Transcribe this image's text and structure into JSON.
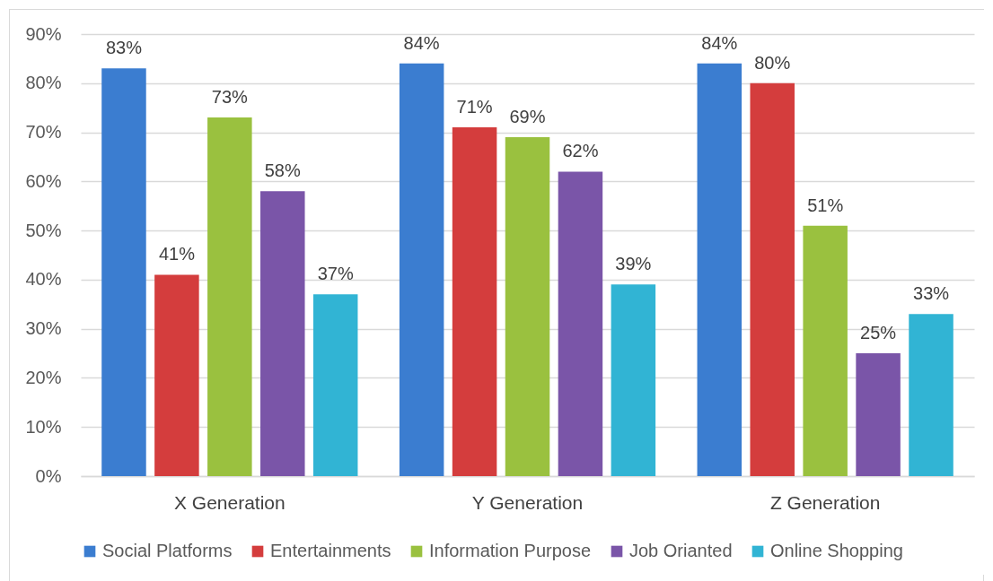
{
  "chart_data": {
    "type": "bar",
    "categories": [
      "X Generation",
      "Y Generation",
      "Z Generation"
    ],
    "series": [
      {
        "name": "Social Platforms",
        "color": "#3b7dd0",
        "values": [
          83,
          84,
          84
        ],
        "value_labels": [
          "83%",
          "84%",
          "84%"
        ]
      },
      {
        "name": "Entertainments",
        "color": "#d43d3d",
        "values": [
          41,
          71,
          80
        ],
        "value_labels": [
          "41%",
          "71%",
          "80%"
        ]
      },
      {
        "name": "Information Purpose",
        "color": "#9ac13f",
        "values": [
          73,
          69,
          51
        ],
        "value_labels": [
          "73%",
          "69%",
          "51%"
        ]
      },
      {
        "name": "Job Orianted",
        "color": "#7a55a8",
        "values": [
          58,
          62,
          25
        ],
        "value_labels": [
          "58%",
          "62%",
          "25%"
        ]
      },
      {
        "name": "Online Shopping",
        "color": "#31b4d4",
        "values": [
          37,
          39,
          33
        ],
        "value_labels": [
          "37%",
          "39%",
          "33%"
        ]
      }
    ],
    "ylim": [
      0,
      90
    ],
    "yticks": [
      {
        "value": 0,
        "label": "0%"
      },
      {
        "value": 10,
        "label": "10%"
      },
      {
        "value": 20,
        "label": "20%"
      },
      {
        "value": 30,
        "label": "30%"
      },
      {
        "value": 40,
        "label": "40%"
      },
      {
        "value": 50,
        "label": "50%"
      },
      {
        "value": 60,
        "label": "60%"
      },
      {
        "value": 70,
        "label": "70%"
      },
      {
        "value": 80,
        "label": "80%"
      },
      {
        "value": 90,
        "label": "90%"
      }
    ],
    "grid": "y",
    "legend": "bottom"
  }
}
